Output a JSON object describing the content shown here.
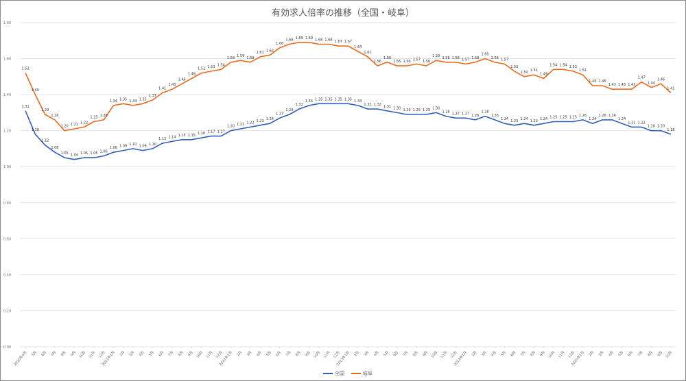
{
  "chart_data": {
    "type": "line",
    "title": "有効求人倍率の推移（全国・岐阜）",
    "xlabel": "",
    "ylabel": "",
    "ylim": [
      0,
      1.8
    ],
    "yticks": [
      "0.00",
      "0.20",
      "0.40",
      "0.60",
      "0.80",
      "1.00",
      "1.20",
      "1.40",
      "1.60",
      "1.80"
    ],
    "grid": true,
    "legend_position": "bottom",
    "categories": [
      "2020年4月",
      "5月",
      "6月",
      "7月",
      "8月",
      "9月",
      "10月",
      "11月",
      "12月",
      "2021年1月",
      "2月",
      "3月",
      "4月",
      "5月",
      "6月",
      "7月",
      "8月",
      "9月",
      "10月",
      "11月",
      "12月",
      "2022年1月",
      "2月",
      "3月",
      "4月",
      "5月",
      "6月",
      "7月",
      "8月",
      "9月",
      "10月",
      "11月",
      "12月",
      "2023年1月",
      "2月",
      "3月",
      "4月",
      "5月",
      "6月",
      "7月",
      "8月",
      "9月",
      "10月",
      "11月",
      "12月",
      "2024年1月",
      "2月",
      "3月",
      "4月",
      "5月",
      "6月",
      "7月",
      "8月",
      "9月",
      "10月",
      "11月",
      "12月",
      "2025年1月",
      "2月",
      "3月",
      "4月",
      "5月",
      "6月",
      "7月",
      "8月",
      "9月",
      "10月"
    ],
    "series": [
      {
        "name": "全国",
        "color": "#2e5cb8",
        "values": [
          1.31,
          1.18,
          1.12,
          1.08,
          1.05,
          1.04,
          1.05,
          1.05,
          1.06,
          1.08,
          1.09,
          1.1,
          1.09,
          1.1,
          1.13,
          1.14,
          1.15,
          1.15,
          1.16,
          1.17,
          1.17,
          1.2,
          1.21,
          1.22,
          1.23,
          1.24,
          1.27,
          1.29,
          1.32,
          1.34,
          1.35,
          1.35,
          1.35,
          1.35,
          1.34,
          1.32,
          1.32,
          1.31,
          1.3,
          1.29,
          1.29,
          1.29,
          1.3,
          1.28,
          1.27,
          1.27,
          1.26,
          1.28,
          1.26,
          1.24,
          1.23,
          1.24,
          1.23,
          1.24,
          1.25,
          1.25,
          1.25,
          1.26,
          1.24,
          1.26,
          1.26,
          1.24,
          1.22,
          1.22,
          1.2,
          1.2,
          1.18
        ]
      },
      {
        "name": "岐阜",
        "color": "#ed6a1a",
        "values": [
          1.52,
          1.4,
          1.29,
          1.26,
          1.2,
          1.21,
          1.22,
          1.25,
          1.26,
          1.34,
          1.35,
          1.34,
          1.35,
          1.37,
          1.41,
          1.43,
          1.46,
          1.49,
          1.52,
          1.53,
          1.54,
          1.58,
          1.59,
          1.58,
          1.61,
          1.62,
          1.66,
          1.68,
          1.69,
          1.69,
          1.68,
          1.68,
          1.67,
          1.67,
          1.64,
          1.61,
          1.56,
          1.58,
          1.56,
          1.56,
          1.57,
          1.56,
          1.59,
          1.58,
          1.58,
          1.57,
          1.58,
          1.6,
          1.58,
          1.57,
          1.53,
          1.5,
          1.51,
          1.49,
          1.54,
          1.54,
          1.53,
          1.51,
          1.45,
          1.45,
          1.43,
          1.43,
          1.43,
          1.47,
          1.44,
          1.46,
          1.41
        ]
      }
    ]
  },
  "legend": {
    "items": [
      {
        "label": "全国",
        "color": "#2e5cb8"
      },
      {
        "label": "岐阜",
        "color": "#ed6a1a"
      }
    ]
  }
}
